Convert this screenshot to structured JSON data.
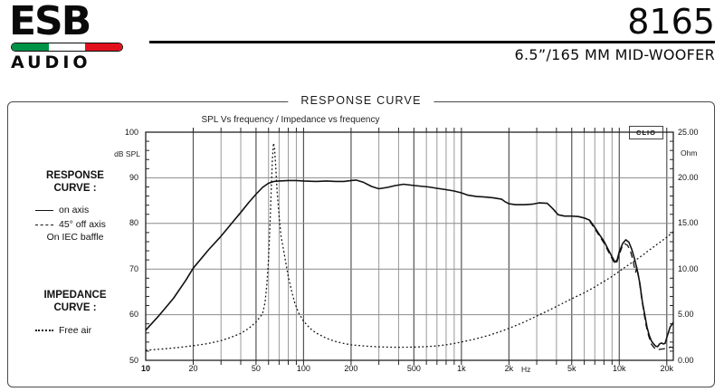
{
  "header": {
    "logo": {
      "name": "ESB",
      "sub": "AUDIO"
    },
    "model": "8165",
    "subtitle": "6.5”/165 MM MID-WOOFER",
    "flag_colors": {
      "green": "#009246",
      "white": "#ffffff",
      "red": "#e1111c"
    }
  },
  "panel": {
    "title": "RESPONSE CURVE"
  },
  "sidebar": {
    "response_heading_line1": "RESPONSE",
    "response_heading_line2": "CURVE :",
    "legend_on_axis": "on axis",
    "legend_off_axis": "45° off axis",
    "baffle_note": "On IEC baffle",
    "impedance_heading_line1": "IMPEDANCE",
    "impedance_heading_line2": "CURVE :",
    "legend_free_air": "Free air"
  },
  "chart_data": {
    "type": "line",
    "title": "SPL Vs frequency / Impedance vs frequency",
    "watermark": "CLIO",
    "x": {
      "scale": "log",
      "min": 10,
      "max": 22000,
      "unit": "Hz",
      "unit_pos": 2800,
      "grid": [
        20,
        30,
        40,
        50,
        60,
        70,
        80,
        90,
        100,
        200,
        300,
        400,
        500,
        600,
        700,
        800,
        900,
        1000,
        2000,
        3000,
        4000,
        5000,
        6000,
        7000,
        8000,
        9000,
        10000,
        20000
      ],
      "labeled": [
        {
          "f": 10,
          "label": "10",
          "bold": true
        },
        {
          "f": 20,
          "label": "20"
        },
        {
          "f": 50,
          "label": "50"
        },
        {
          "f": 100,
          "label": "100"
        },
        {
          "f": 200,
          "label": "200"
        },
        {
          "f": 500,
          "label": "500"
        },
        {
          "f": 1000,
          "label": "1k"
        },
        {
          "f": 2000,
          "label": "2k"
        },
        {
          "f": 5000,
          "label": "5k"
        },
        {
          "f": 10000,
          "label": "10k"
        },
        {
          "f": 20000,
          "label": "20k"
        }
      ]
    },
    "y_left": {
      "min": 50,
      "max": 100,
      "unit": "dB SPL",
      "majors": [
        100,
        90,
        80,
        70,
        60,
        50
      ],
      "grid": [
        90,
        80,
        70,
        60
      ],
      "minor_step": 2
    },
    "y_right": {
      "min": 0,
      "max": 25,
      "unit": "Ohm",
      "majors": [
        {
          "v": 25,
          "label": "25.00"
        },
        {
          "v": 20,
          "label": "20.00"
        },
        {
          "v": 15,
          "label": "15.00"
        },
        {
          "v": 10,
          "label": "10.00"
        },
        {
          "v": 5,
          "label": "5.00"
        },
        {
          "v": 0,
          "label": "0.00"
        }
      ],
      "minor_step": 1
    },
    "series": [
      {
        "name": "response_on_axis",
        "axis": "left",
        "style": "solid",
        "unit": "dB SPL",
        "points": [
          [
            10,
            56.6
          ],
          [
            12,
            59.6
          ],
          [
            15,
            63.6
          ],
          [
            18,
            67.6
          ],
          [
            20,
            70.2
          ],
          [
            25,
            74.2
          ],
          [
            30,
            77.2
          ],
          [
            35,
            80.0
          ],
          [
            40,
            82.4
          ],
          [
            45,
            84.6
          ],
          [
            50,
            86.4
          ],
          [
            55,
            87.9
          ],
          [
            60,
            88.8
          ],
          [
            65,
            89.2
          ],
          [
            70,
            89.3
          ],
          [
            80,
            89.4
          ],
          [
            90,
            89.4
          ],
          [
            100,
            89.3
          ],
          [
            120,
            89.2
          ],
          [
            140,
            89.3
          ],
          [
            160,
            89.2
          ],
          [
            180,
            89.2
          ],
          [
            200,
            89.4
          ],
          [
            215,
            89.5
          ],
          [
            240,
            89.0
          ],
          [
            270,
            88.1
          ],
          [
            300,
            87.6
          ],
          [
            340,
            87.9
          ],
          [
            380,
            88.3
          ],
          [
            430,
            88.6
          ],
          [
            480,
            88.4
          ],
          [
            540,
            88.2
          ],
          [
            620,
            88.0
          ],
          [
            700,
            87.7
          ],
          [
            800,
            87.4
          ],
          [
            900,
            87.1
          ],
          [
            1000,
            86.7
          ],
          [
            1100,
            86.2
          ],
          [
            1250,
            85.9
          ],
          [
            1400,
            85.8
          ],
          [
            1600,
            85.6
          ],
          [
            1800,
            85.3
          ],
          [
            1900,
            84.7
          ],
          [
            2000,
            84.3
          ],
          [
            2200,
            84.1
          ],
          [
            2500,
            84.1
          ],
          [
            2800,
            84.2
          ],
          [
            3100,
            84.5
          ],
          [
            3500,
            84.4
          ],
          [
            3800,
            83.2
          ],
          [
            4100,
            81.9
          ],
          [
            4500,
            81.6
          ],
          [
            5000,
            81.6
          ],
          [
            5500,
            81.5
          ],
          [
            6000,
            81.2
          ],
          [
            6500,
            80.7
          ],
          [
            7000,
            79.1
          ],
          [
            7500,
            77.5
          ],
          [
            8000,
            76.1
          ],
          [
            8500,
            74.3
          ],
          [
            9000,
            72.7
          ],
          [
            9400,
            71.5
          ],
          [
            9700,
            72.0
          ],
          [
            10000,
            73.8
          ],
          [
            10500,
            75.6
          ],
          [
            11000,
            76.4
          ],
          [
            11500,
            75.9
          ],
          [
            12000,
            74.3
          ],
          [
            12500,
            72.2
          ],
          [
            13000,
            69.8
          ],
          [
            13500,
            66.9
          ],
          [
            14000,
            62.8
          ],
          [
            14500,
            60.0
          ],
          [
            15000,
            57.2
          ],
          [
            15500,
            55.4
          ],
          [
            16000,
            54.2
          ],
          [
            16500,
            53.6
          ],
          [
            17000,
            53.1
          ],
          [
            17500,
            53.0
          ],
          [
            18000,
            53.6
          ],
          [
            18500,
            53.8
          ],
          [
            19000,
            53.6
          ],
          [
            19500,
            53.7
          ],
          [
            20000,
            55.0
          ],
          [
            21000,
            57.3
          ],
          [
            22000,
            58.3
          ]
        ]
      },
      {
        "name": "response_45deg_off_axis",
        "axis": "left",
        "style": "dashed",
        "unit": "dB SPL",
        "points": [
          [
            6500,
            80.5
          ],
          [
            7000,
            78.8
          ],
          [
            7500,
            77.2
          ],
          [
            8000,
            75.7
          ],
          [
            8500,
            73.9
          ],
          [
            9000,
            72.3
          ],
          [
            9400,
            71.1
          ],
          [
            9700,
            71.7
          ],
          [
            10000,
            73.2
          ],
          [
            10400,
            74.8
          ],
          [
            10800,
            75.6
          ],
          [
            11300,
            75.2
          ],
          [
            11800,
            73.8
          ],
          [
            12200,
            72.0
          ],
          [
            12500,
            70.2
          ],
          [
            12700,
            69.3
          ],
          [
            12900,
            70.4
          ],
          [
            13100,
            69.6
          ],
          [
            13400,
            67.3
          ],
          [
            13800,
            64.0
          ],
          [
            14300,
            60.5
          ],
          [
            14800,
            57.6
          ],
          [
            15300,
            55.5
          ],
          [
            16000,
            53.5
          ],
          [
            16500,
            52.9
          ],
          [
            17000,
            52.5
          ],
          [
            17500,
            52.3
          ],
          [
            18000,
            52.4
          ],
          [
            19000,
            52.5
          ],
          [
            20000,
            52.6
          ],
          [
            21000,
            52.9
          ],
          [
            22000,
            52.8
          ]
        ]
      },
      {
        "name": "impedance_free_air",
        "axis": "right",
        "style": "dotted",
        "unit": "Ohm",
        "points": [
          [
            10,
            1.1
          ],
          [
            13,
            1.25
          ],
          [
            16,
            1.4
          ],
          [
            20,
            1.6
          ],
          [
            25,
            1.85
          ],
          [
            30,
            2.15
          ],
          [
            35,
            2.55
          ],
          [
            40,
            2.95
          ],
          [
            45,
            3.5
          ],
          [
            50,
            4.2
          ],
          [
            55,
            5.1
          ],
          [
            57,
            6.3
          ],
          [
            58.5,
            8.2
          ],
          [
            60,
            11.0
          ],
          [
            61.5,
            15.5
          ],
          [
            62.5,
            19.0
          ],
          [
            63.5,
            22.0
          ],
          [
            64.5,
            23.8
          ],
          [
            65.5,
            23.2
          ],
          [
            66.5,
            21.5
          ],
          [
            68,
            18.5
          ],
          [
            70,
            15.8
          ],
          [
            72,
            13.6
          ],
          [
            74,
            12.5
          ],
          [
            77,
            10.8
          ],
          [
            80,
            9.2
          ],
          [
            84,
            7.6
          ],
          [
            88,
            6.3
          ],
          [
            93,
            5.2
          ],
          [
            100,
            4.3
          ],
          [
            110,
            3.5
          ],
          [
            120,
            3.0
          ],
          [
            140,
            2.4
          ],
          [
            160,
            2.05
          ],
          [
            180,
            1.85
          ],
          [
            200,
            1.7
          ],
          [
            250,
            1.55
          ],
          [
            300,
            1.48
          ],
          [
            350,
            1.44
          ],
          [
            400,
            1.43
          ],
          [
            500,
            1.45
          ],
          [
            600,
            1.5
          ],
          [
            700,
            1.58
          ],
          [
            800,
            1.7
          ],
          [
            900,
            1.85
          ],
          [
            1000,
            2.0
          ],
          [
            1200,
            2.3
          ],
          [
            1500,
            2.75
          ],
          [
            1800,
            3.2
          ],
          [
            2000,
            3.5
          ],
          [
            2500,
            4.2
          ],
          [
            3000,
            4.85
          ],
          [
            3500,
            5.4
          ],
          [
            4000,
            5.9
          ],
          [
            4500,
            6.35
          ],
          [
            5000,
            6.75
          ],
          [
            6000,
            7.4
          ],
          [
            7000,
            8.05
          ],
          [
            8000,
            8.65
          ],
          [
            9000,
            9.2
          ],
          [
            10000,
            9.75
          ],
          [
            11000,
            10.25
          ],
          [
            12000,
            10.7
          ],
          [
            13000,
            11.1
          ],
          [
            14000,
            11.5
          ],
          [
            15000,
            11.9
          ],
          [
            16000,
            12.25
          ],
          [
            17000,
            12.6
          ],
          [
            18000,
            12.9
          ],
          [
            19000,
            13.2
          ],
          [
            20000,
            13.5
          ],
          [
            21000,
            13.8
          ],
          [
            22000,
            14.1
          ]
        ]
      }
    ],
    "colors": {
      "curve": "#111111",
      "grid_minor": "#9a9a9a",
      "grid_major": "#555555",
      "border": "#222222"
    }
  }
}
